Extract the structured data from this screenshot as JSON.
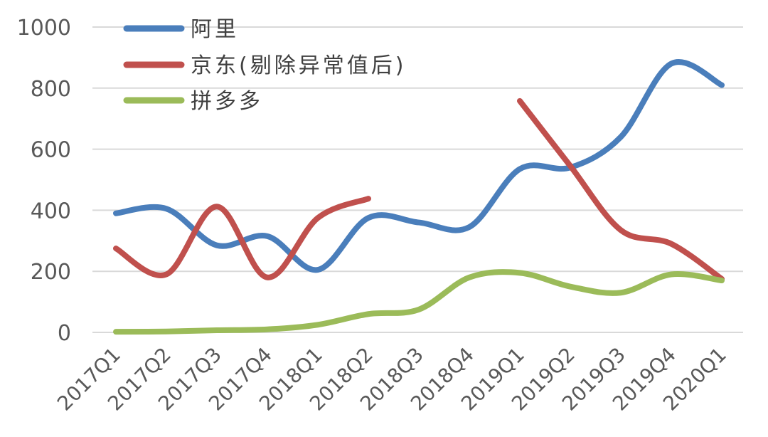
{
  "chart_data": {
    "type": "line",
    "title": "",
    "xlabel": "",
    "ylabel": "",
    "categories": [
      "2017Q1",
      "2017Q2",
      "2017Q3",
      "2017Q4",
      "2018Q1",
      "2018Q2",
      "2018Q3",
      "2018Q4",
      "2019Q1",
      "2019Q2",
      "2019Q3",
      "2019Q4",
      "2020Q1"
    ],
    "ylim": [
      0,
      1000
    ],
    "yticks": [
      0,
      200,
      400,
      600,
      800,
      1000
    ],
    "grid": true,
    "legend_position": "top-left",
    "series": [
      {
        "name": "阿里",
        "color": "#4a7ebb",
        "values": [
          390,
          405,
          285,
          315,
          205,
          375,
          360,
          345,
          535,
          540,
          640,
          880,
          810
        ]
      },
      {
        "name": "京东(剔除异常值后)",
        "color": "#c0504d",
        "values": [
          275,
          190,
          412,
          180,
          375,
          438,
          null,
          null,
          758,
          545,
          335,
          290,
          175
        ]
      },
      {
        "name": "拼多多",
        "color": "#9bbb59",
        "values": [
          2,
          3,
          7,
          10,
          25,
          60,
          75,
          180,
          195,
          150,
          130,
          190,
          170
        ]
      }
    ]
  }
}
